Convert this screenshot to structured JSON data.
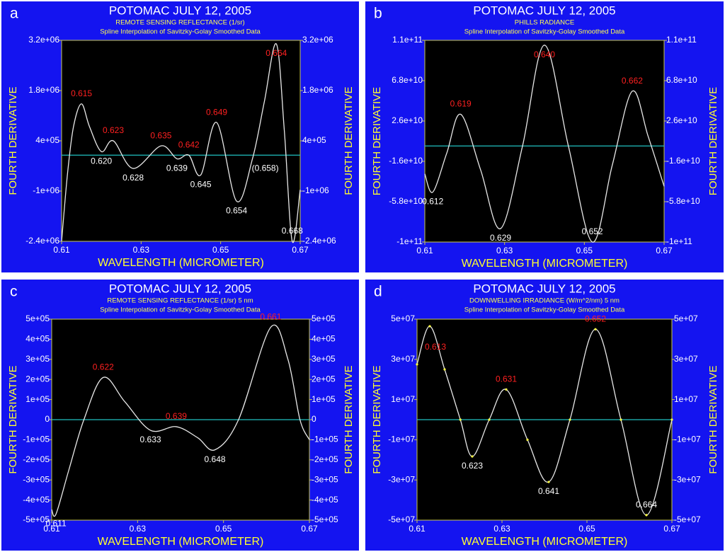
{
  "chart_data": [
    {
      "type": "line",
      "panel_label": "a",
      "title": "POTOMAC JULY 12, 2005",
      "subtitles": [
        "REMOTE SENSING REFLECTANCE (1/sr)",
        "Spline Interpolation of Savitzky-Golay Smoothed Data"
      ],
      "xlabel": "WAVELENGTH (MICROMETER)",
      "ylabel": "FOURTH DERIVATIVE",
      "y2label": "FOURTH DERIVATIVE",
      "xlim": [
        0.61,
        0.67
      ],
      "xticks": [
        0.61,
        0.63,
        0.65,
        0.67
      ],
      "ylim": [
        -2400000,
        3200000
      ],
      "yticks": [
        {
          "value": -2400000,
          "label": "-2.4e+06"
        },
        {
          "value": -1000000,
          "label": "-1e+06"
        },
        {
          "value": 400000,
          "label": "4e+05"
        },
        {
          "value": 1800000,
          "label": "1.8e+06"
        },
        {
          "value": 3200000,
          "label": "3.2e+06"
        }
      ],
      "y2lim": [
        -2400000,
        3200000
      ],
      "y2ticks": [
        {
          "value": -2400000,
          "label": "-2.4e+06"
        },
        {
          "value": -1000000,
          "label": "-1e+06"
        },
        {
          "value": 400000,
          "label": "4e+05"
        },
        {
          "value": 1800000,
          "label": "1.8e+06"
        },
        {
          "value": 3200000,
          "label": "3.2e+06"
        }
      ],
      "reference_line": {
        "y": 0,
        "color": "#20c0c0"
      },
      "markers": false,
      "series": [
        {
          "color": "#e8e8e8",
          "x": [
            0.61,
            0.6115,
            0.613,
            0.615,
            0.617,
            0.62,
            0.623,
            0.628,
            0.635,
            0.639,
            0.642,
            0.645,
            0.649,
            0.654,
            0.658,
            0.661,
            0.664,
            0.666,
            0.668,
            0.67
          ],
          "values": [
            -2400000,
            -500000,
            800000,
            1430000,
            800000,
            100000,
            400000,
            -370000,
            260000,
            -100000,
            0,
            -550000,
            910000,
            -1280000,
            -100000,
            1500000,
            3100000,
            700000,
            -2400000,
            -960000
          ]
        }
      ],
      "annotations": [
        {
          "text": "0.615",
          "x": 0.615,
          "y": 1430000,
          "color": "#ff2020",
          "position": "above"
        },
        {
          "text": "0.623",
          "x": 0.623,
          "y": 400000,
          "color": "#ff2020",
          "position": "above"
        },
        {
          "text": "0.635",
          "x": 0.635,
          "y": 260000,
          "color": "#ff2020",
          "position": "above"
        },
        {
          "text": "0.642",
          "x": 0.642,
          "y": 0,
          "color": "#ff2020",
          "position": "above"
        },
        {
          "text": "0.649",
          "x": 0.649,
          "y": 910000,
          "color": "#ff2020",
          "position": "above"
        },
        {
          "text": "0.664",
          "x": 0.664,
          "y": 3100000,
          "color": "#ff2020",
          "position": "below"
        },
        {
          "text": "0.620",
          "x": 0.62,
          "y": 100000,
          "color": "#ffffff",
          "position": "below"
        },
        {
          "text": "0.628",
          "x": 0.628,
          "y": -370000,
          "color": "#ffffff",
          "position": "below"
        },
        {
          "text": "0.639",
          "x": 0.639,
          "y": -100000,
          "color": "#ffffff",
          "position": "below"
        },
        {
          "text": "0.645",
          "x": 0.645,
          "y": -550000,
          "color": "#ffffff",
          "position": "below"
        },
        {
          "text": "0.654",
          "x": 0.654,
          "y": -1280000,
          "color": "#ffffff",
          "position": "below"
        },
        {
          "text": "(0.658)",
          "x": 0.658,
          "y": -100000,
          "color": "#ffffff",
          "position": "right"
        },
        {
          "text": "0.668",
          "x": 0.668,
          "y": -2400000,
          "color": "#ffffff",
          "position": "upper"
        }
      ]
    },
    {
      "type": "line",
      "panel_label": "b",
      "title": "POTOMAC JULY 12, 2005",
      "subtitles": [
        "PHILLS RADIANCE",
        "Spline Interpolation of Savitzky-Golay Smoothed Data"
      ],
      "xlabel": "WAVELENGTH (MICROMETER)",
      "ylabel": "FOURTH DERIVATIVE",
      "y2label": "FOURTH DERIVATIVE",
      "xlim": [
        0.61,
        0.67
      ],
      "xticks": [
        0.61,
        0.63,
        0.65,
        0.67
      ],
      "ylim": [
        -100000000000,
        110000000000
      ],
      "yticks": [
        {
          "value": -100000000000,
          "label": "-1e+11"
        },
        {
          "value": -58000000000,
          "label": "-5.8e+10"
        },
        {
          "value": -16000000000,
          "label": "-1.6e+10"
        },
        {
          "value": 26000000000,
          "label": "2.6e+10"
        },
        {
          "value": 68000000000,
          "label": "6.8e+10"
        },
        {
          "value": 110000000000,
          "label": "1.1e+11"
        }
      ],
      "y2lim": [
        -100000000000,
        110000000000
      ],
      "y2ticks": [
        {
          "value": -100000000000,
          "label": "-1e+11"
        },
        {
          "value": -58000000000,
          "label": "-5.8e+10"
        },
        {
          "value": -16000000000,
          "label": "-1.6e+10"
        },
        {
          "value": 26000000000,
          "label": "2.6e+10"
        },
        {
          "value": 68000000000,
          "label": "6.8e+10"
        },
        {
          "value": 110000000000,
          "label": "1.1e+11"
        }
      ],
      "reference_line": {
        "y": 0,
        "color": "#20c0c0"
      },
      "markers": false,
      "series": [
        {
          "color": "#e8e8e8",
          "x": [
            0.61,
            0.612,
            0.6155,
            0.619,
            0.624,
            0.629,
            0.6345,
            0.64,
            0.646,
            0.652,
            0.657,
            0.662,
            0.666,
            0.67
          ],
          "values": [
            -29000000000,
            -48000000000,
            -7500000000,
            33000000000,
            -25000000000,
            -86000000000,
            0,
            105000000000,
            0,
            -100000000000,
            -20000000000,
            57000000000,
            10000000000,
            -42000000000
          ]
        }
      ],
      "annotations": [
        {
          "text": "0.619",
          "x": 0.619,
          "y": 33000000000,
          "color": "#ff2020",
          "position": "above"
        },
        {
          "text": "0.640",
          "x": 0.64,
          "y": 105000000000,
          "color": "#ff2020",
          "position": "below"
        },
        {
          "text": "0.662",
          "x": 0.662,
          "y": 57000000000,
          "color": "#ff2020",
          "position": "above"
        },
        {
          "text": "0.612",
          "x": 0.612,
          "y": -48000000000,
          "color": "#ffffff",
          "position": "below"
        },
        {
          "text": "0.629",
          "x": 0.629,
          "y": -86000000000,
          "color": "#ffffff",
          "position": "below"
        },
        {
          "text": "0.652",
          "x": 0.652,
          "y": -100000000000,
          "color": "#ffffff",
          "position": "upper"
        }
      ]
    },
    {
      "type": "line",
      "panel_label": "c",
      "title": "POTOMAC JULY 12, 2005",
      "subtitles": [
        "REMOTE SENSING REFLECTANCE (1/sr)  5 nm",
        "Spline Interpolation of Savitzky-Golay Smoothed Data"
      ],
      "xlabel": "WAVELENGTH (MICROMETER)",
      "ylabel": "FOURTH DERIVATIVE",
      "y2label": "FOURTH DERIVATIVE",
      "xlim": [
        0.61,
        0.67
      ],
      "xticks": [
        0.61,
        0.63,
        0.65,
        0.67
      ],
      "ylim": [
        -500000,
        500000
      ],
      "yticks": [
        {
          "value": -500000,
          "label": "-5e+05"
        },
        {
          "value": -400000,
          "label": "-4e+05"
        },
        {
          "value": -300000,
          "label": "-3e+05"
        },
        {
          "value": -200000,
          "label": "-2e+05"
        },
        {
          "value": -100000,
          "label": "-1e+05"
        },
        0,
        {
          "value": 100000,
          "label": "1e+05"
        },
        {
          "value": 200000,
          "label": "2e+05"
        },
        {
          "value": 300000,
          "label": "3e+05"
        },
        {
          "value": 400000,
          "label": "4e+05"
        },
        {
          "value": 500000,
          "label": "5e+05"
        }
      ],
      "y2lim": [
        -500000,
        500000
      ],
      "y2ticks": [
        {
          "value": -500000,
          "label": "-5e+05"
        },
        {
          "value": -400000,
          "label": "-4e+05"
        },
        {
          "value": -300000,
          "label": "-3e+05"
        },
        {
          "value": -200000,
          "label": "-2e+05"
        },
        {
          "value": -100000,
          "label": "-1e+05"
        },
        0,
        {
          "value": 100000,
          "label": "1e+05"
        },
        {
          "value": 200000,
          "label": "2e+05"
        },
        {
          "value": 300000,
          "label": "3e+05"
        },
        {
          "value": 400000,
          "label": "4e+05"
        },
        {
          "value": 500000,
          "label": "5e+05"
        }
      ],
      "reference_line": {
        "y": 0,
        "color": "#20c0c0"
      },
      "markers": false,
      "series": [
        {
          "color": "#e8e8e8",
          "x": [
            0.61,
            0.611,
            0.614,
            0.6175,
            0.622,
            0.627,
            0.633,
            0.639,
            0.644,
            0.648,
            0.6535,
            0.661,
            0.665,
            0.6678,
            0.67
          ],
          "values": [
            -447000,
            -470000,
            -250000,
            0,
            210000,
            90000,
            -53000,
            -35000,
            -90000,
            -150000,
            0,
            460000,
            300000,
            0,
            -100000
          ]
        }
      ],
      "annotations": [
        {
          "text": "0.622",
          "x": 0.622,
          "y": 210000,
          "color": "#ff2020",
          "position": "above"
        },
        {
          "text": "0.639",
          "x": 0.639,
          "y": -35000,
          "color": "#ff2020",
          "position": "above"
        },
        {
          "text": "0.661",
          "x": 0.661,
          "y": 460000,
          "color": "#ff2020",
          "position": "above"
        },
        {
          "text": "0.611",
          "x": 0.611,
          "y": -470000,
          "color": "#ffffff",
          "position": "below"
        },
        {
          "text": "0.633",
          "x": 0.633,
          "y": -53000,
          "color": "#ffffff",
          "position": "below"
        },
        {
          "text": "0.648",
          "x": 0.648,
          "y": -150000,
          "color": "#ffffff",
          "position": "below"
        }
      ]
    },
    {
      "type": "line",
      "panel_label": "d",
      "title": "POTOMAC JULY 12, 2005",
      "subtitles": [
        "DOWNWELLING IRRADIANCE (W/m^2/nm) 5 nm",
        "Spline Interpolation of Savitzky-Golay Smoothed Data"
      ],
      "xlabel": "WAVELENGTH (MICROMETER)",
      "ylabel": "FOURTH DERIVATIVE",
      "y2label": "FOURTH DERIVATIVE",
      "xlim": [
        0.61,
        0.67
      ],
      "xticks": [
        0.61,
        0.63,
        0.65,
        0.67
      ],
      "ylim": [
        -50000000,
        50000000
      ],
      "yticks": [
        {
          "value": -50000000,
          "label": "-5e+07"
        },
        {
          "value": -30000000,
          "label": "-3e+07"
        },
        {
          "value": -10000000,
          "label": "-1e+07"
        },
        {
          "value": 10000000,
          "label": "1e+07"
        },
        {
          "value": 30000000,
          "label": "3e+07"
        },
        {
          "value": 50000000,
          "label": "5e+07"
        }
      ],
      "y2lim": [
        -50000000,
        50000000
      ],
      "y2ticks": [
        {
          "value": -50000000,
          "label": "-5e+07"
        },
        {
          "value": -30000000,
          "label": "-3e+07"
        },
        {
          "value": -10000000,
          "label": "-1e+07"
        },
        {
          "value": 10000000,
          "label": "1e+07"
        },
        {
          "value": 30000000,
          "label": "3e+07"
        },
        {
          "value": 50000000,
          "label": "5e+07"
        }
      ],
      "reference_line": {
        "y": 0,
        "color": "#20c0c0"
      },
      "markers": true,
      "marker_color": "#ffff40",
      "series": [
        {
          "color": "#e8e8e8",
          "x": [
            0.61,
            0.613,
            0.6165,
            0.6202,
            0.623,
            0.627,
            0.631,
            0.636,
            0.641,
            0.646,
            0.652,
            0.658,
            0.664,
            0.67
          ],
          "values": [
            27500000,
            46500000,
            25000000,
            0,
            -18300000,
            0,
            15000000,
            -10000000,
            -31000000,
            0,
            45000000,
            0,
            -47500000,
            0
          ]
        }
      ],
      "annotations": [
        {
          "text": "0.613",
          "x": 0.613,
          "y": 46500000,
          "color": "#ff2020",
          "position": "lower"
        },
        {
          "text": "0.631",
          "x": 0.631,
          "y": 15000000,
          "color": "#ff2020",
          "position": "above"
        },
        {
          "text": "0.652",
          "x": 0.652,
          "y": 45000000,
          "color": "#ff2020",
          "position": "above"
        },
        {
          "text": "0.623",
          "x": 0.623,
          "y": -18300000,
          "color": "#ffffff",
          "position": "below"
        },
        {
          "text": "0.641",
          "x": 0.641,
          "y": -31000000,
          "color": "#ffffff",
          "position": "below"
        },
        {
          "text": "0.664",
          "x": 0.664,
          "y": -47500000,
          "color": "#ffffff",
          "position": "upper"
        }
      ]
    }
  ]
}
